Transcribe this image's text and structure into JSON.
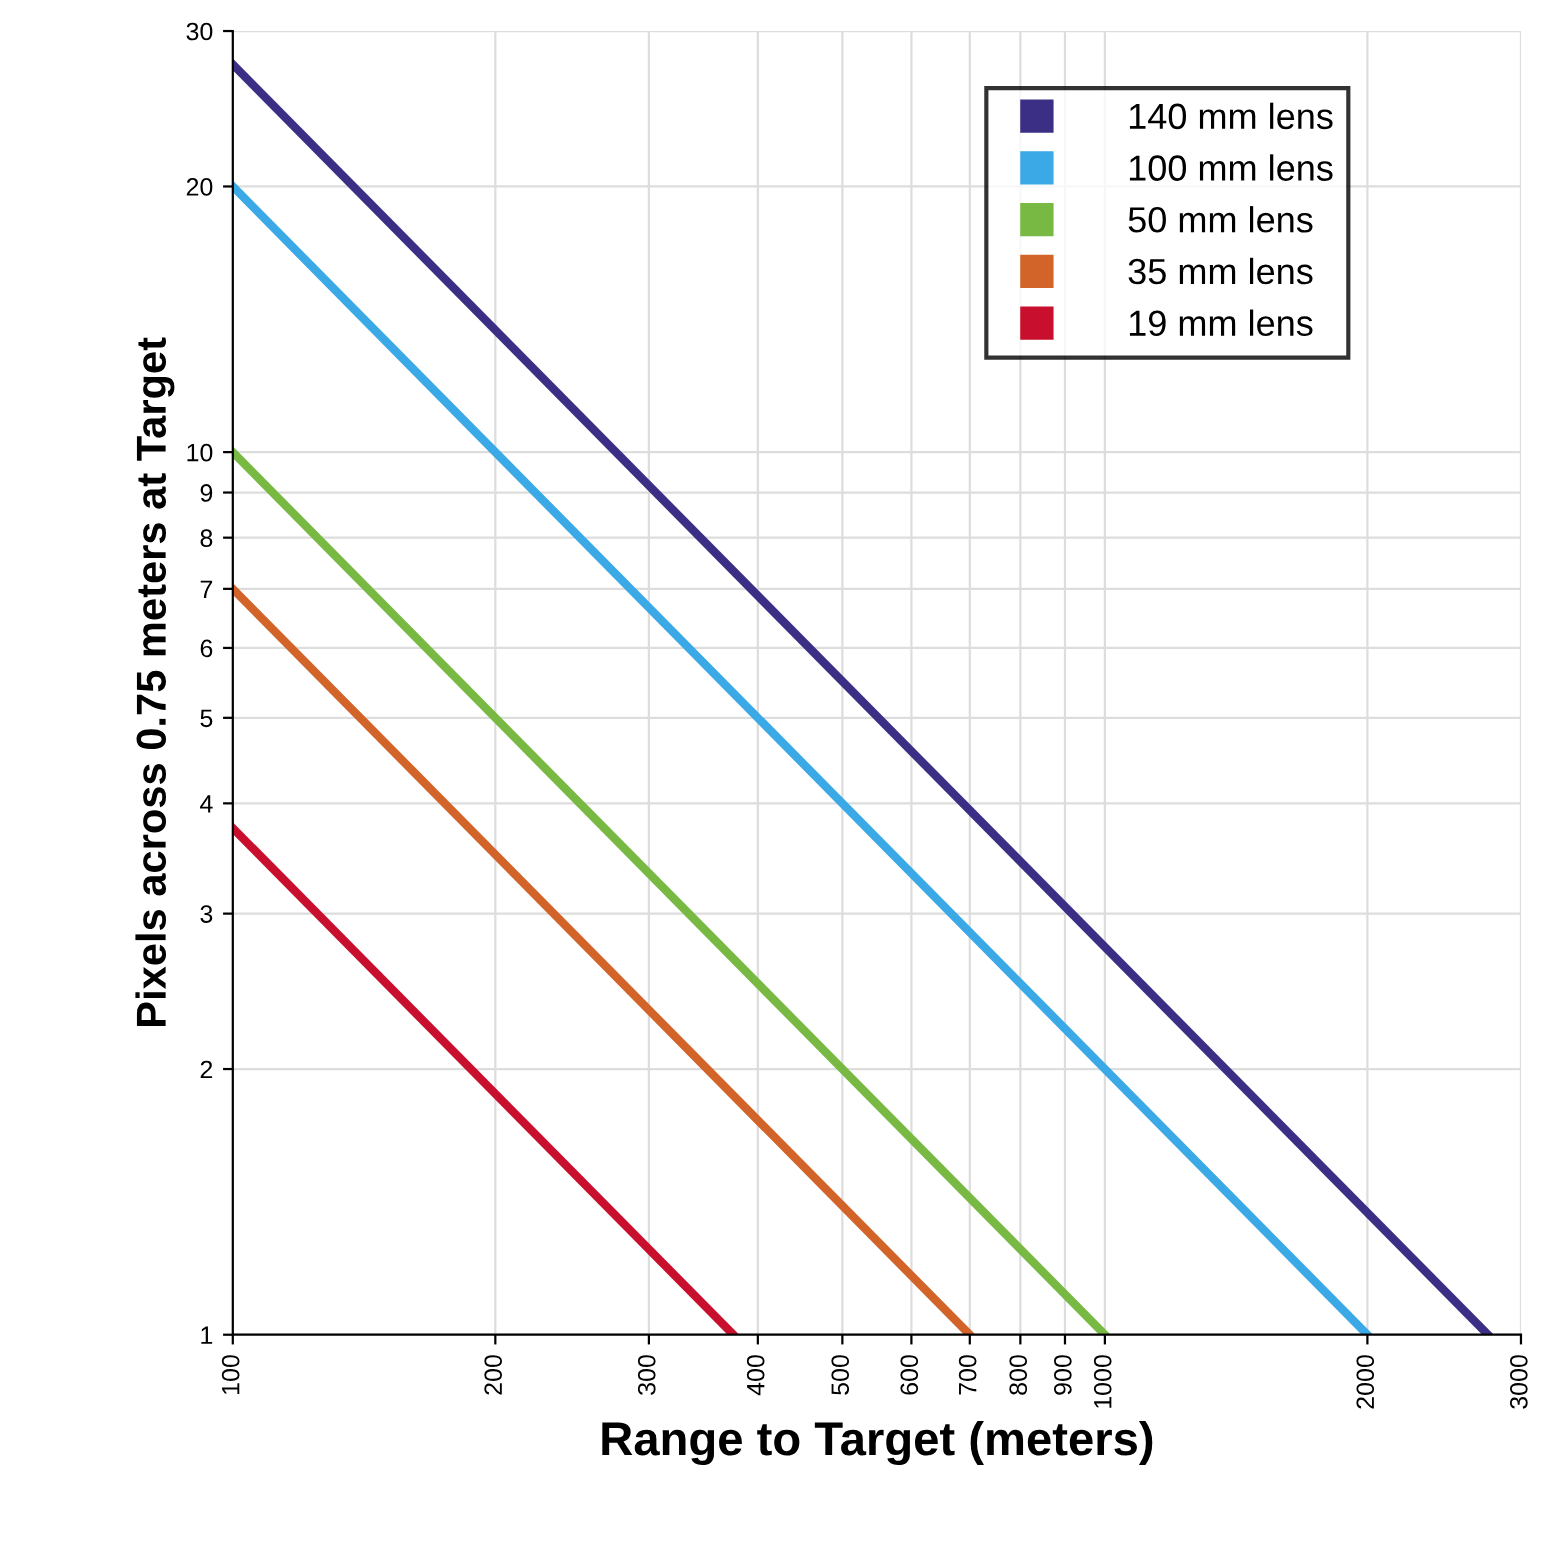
{
  "chart_data": {
    "type": "line",
    "xlabel": "Range to Target (meters)",
    "ylabel": "Pixels across 0.75 meters at Target",
    "log": "xy",
    "xlim": [
      100,
      3000
    ],
    "ylim": [
      1,
      30
    ],
    "xticks": [
      100,
      200,
      300,
      400,
      500,
      600,
      700,
      800,
      900,
      1000,
      2000,
      3000
    ],
    "yticks": [
      1,
      2,
      3,
      4,
      5,
      6,
      7,
      8,
      9,
      10,
      20,
      30
    ],
    "grid": true,
    "legend": "top right",
    "marker": "none",
    "line_style": "solid",
    "series": [
      {
        "name": "140 mm lens",
        "color": "#3b2f85",
        "x": [
          100,
          2750
        ],
        "values": [
          27.5,
          1
        ]
      },
      {
        "name": "100 mm lens",
        "color": "#3aa9e6",
        "x": [
          100,
          2000
        ],
        "values": [
          20,
          1
        ]
      },
      {
        "name": "50 mm lens",
        "color": "#78b943",
        "x": [
          100,
          1000
        ],
        "values": [
          10,
          1
        ]
      },
      {
        "name": "35 mm lens",
        "color": "#d2642a",
        "x": [
          100,
          700
        ],
        "values": [
          7,
          1
        ]
      },
      {
        "name": "19 mm lens",
        "color": "#c8102e",
        "x": [
          100,
          375
        ],
        "values": [
          3.75,
          1
        ]
      }
    ]
  }
}
